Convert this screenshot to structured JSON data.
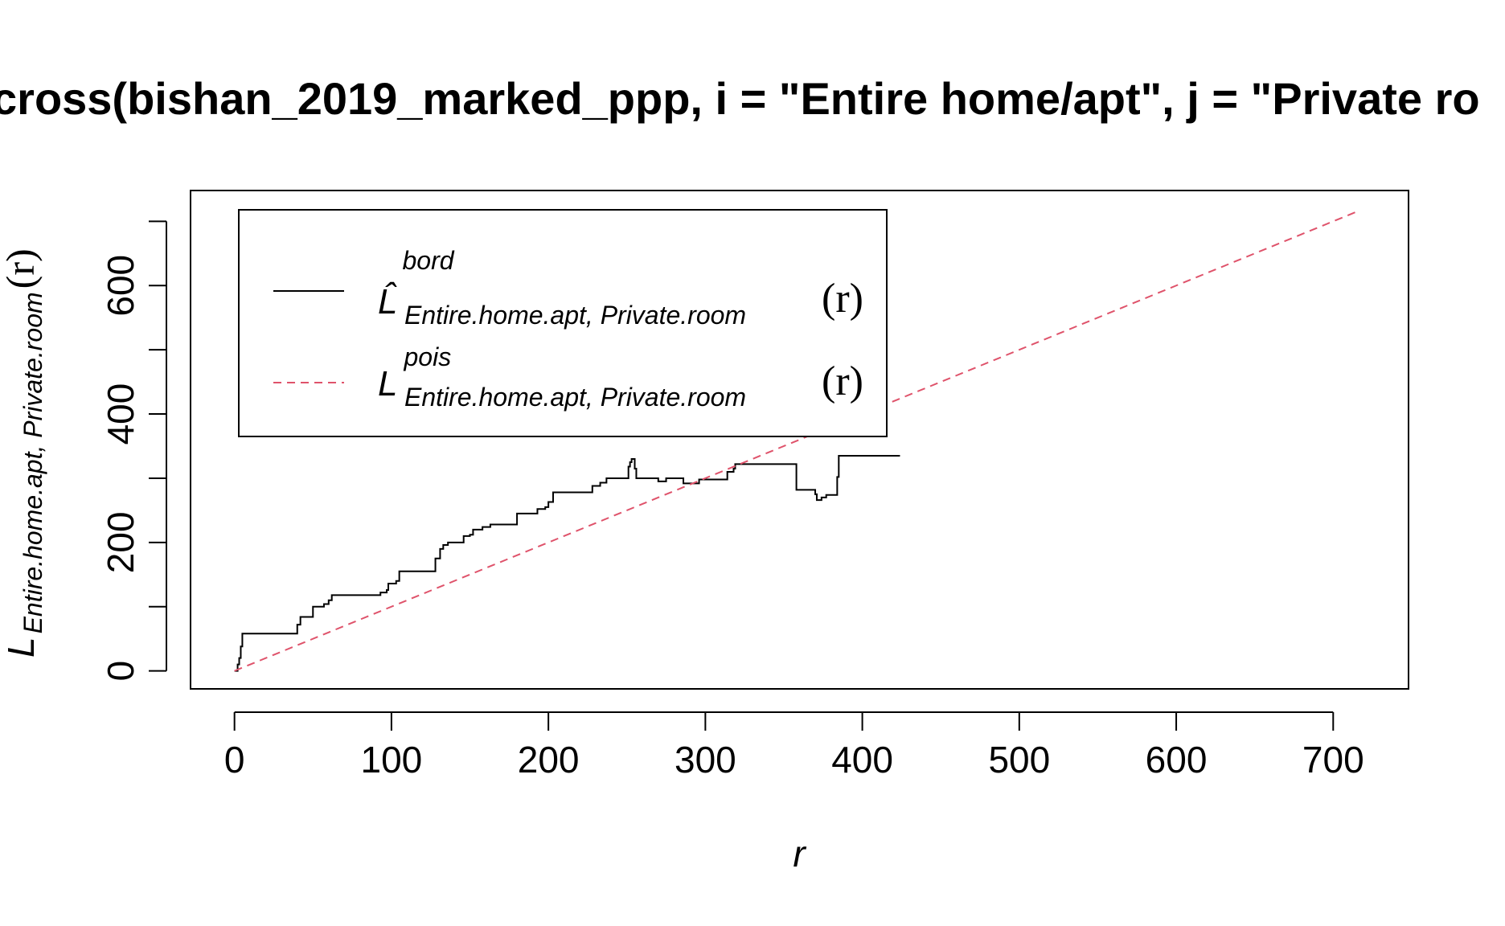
{
  "chart_data": {
    "type": "line",
    "title": "cross(bishan_2019_marked_ppp, i = \"Entire home/apt\", j = \"Private ro",
    "xlabel": "r",
    "ylabel": {
      "main": "L",
      "sub": "Entire.home.apt, Private.room",
      "arg": "(r)"
    },
    "xlim": [
      -28,
      748
    ],
    "ylim": [
      -28,
      748
    ],
    "x_ticks": [
      0,
      100,
      200,
      300,
      400,
      500,
      600,
      700
    ],
    "x_tick_labels": [
      "0",
      "100",
      "200",
      "300",
      "400",
      "500",
      "600",
      "700"
    ],
    "y_ticks": [
      0,
      100,
      200,
      300,
      400,
      500,
      600,
      700
    ],
    "y_tick_labels": [
      "0",
      "200",
      "400",
      "600"
    ],
    "y_tick_label_values": [
      0,
      200,
      400,
      600
    ],
    "legend": {
      "position": "top-left",
      "entries": [
        {
          "main": "L̂",
          "sup": "bord",
          "sub": "Entire.home.apt, Private.room",
          "arg": "(r)",
          "color": "#000000",
          "dash": "solid"
        },
        {
          "main": "L",
          "sup": "pois",
          "sub": "Entire.home.apt, Private.room",
          "arg": "(r)",
          "color": "#DF536B",
          "dash": "dashed"
        }
      ]
    },
    "series": [
      {
        "color": "#000000",
        "style": "step",
        "points": [
          [
            0,
            0
          ],
          [
            2,
            10
          ],
          [
            3,
            20
          ],
          [
            4,
            38
          ],
          [
            5,
            58
          ],
          [
            40,
            58
          ],
          [
            40,
            72
          ],
          [
            42,
            84
          ],
          [
            50,
            84
          ],
          [
            50,
            100
          ],
          [
            57,
            104
          ],
          [
            60,
            110
          ],
          [
            62,
            118
          ],
          [
            90,
            118
          ],
          [
            93,
            122
          ],
          [
            97,
            126
          ],
          [
            98,
            136
          ],
          [
            103,
            140
          ],
          [
            105,
            155
          ],
          [
            126,
            155
          ],
          [
            128,
            175
          ],
          [
            131,
            190
          ],
          [
            133,
            196
          ],
          [
            136,
            200
          ],
          [
            144,
            200
          ],
          [
            146,
            210
          ],
          [
            150,
            212
          ],
          [
            152,
            220
          ],
          [
            158,
            224
          ],
          [
            163,
            228
          ],
          [
            178,
            228
          ],
          [
            180,
            245
          ],
          [
            192,
            245
          ],
          [
            193,
            252
          ],
          [
            198,
            255
          ],
          [
            200,
            263
          ],
          [
            203,
            278
          ],
          [
            225,
            278
          ],
          [
            228,
            288
          ],
          [
            233,
            293
          ],
          [
            237,
            300
          ],
          [
            248,
            300
          ],
          [
            251,
            318
          ],
          [
            252,
            325
          ],
          [
            253,
            330
          ],
          [
            255,
            315
          ],
          [
            256,
            300
          ],
          [
            268,
            300
          ],
          [
            270,
            295
          ],
          [
            275,
            300
          ],
          [
            284,
            300
          ],
          [
            286,
            292
          ],
          [
            293,
            292
          ],
          [
            296,
            298
          ],
          [
            312,
            298
          ],
          [
            314,
            310
          ],
          [
            318,
            315
          ],
          [
            319,
            322
          ],
          [
            357,
            322
          ],
          [
            358,
            282
          ],
          [
            367,
            282
          ],
          [
            370,
            275
          ],
          [
            371,
            266
          ],
          [
            374,
            270
          ],
          [
            377,
            274
          ],
          [
            384,
            274
          ],
          [
            384,
            302
          ],
          [
            385,
            335
          ],
          [
            424,
            335
          ]
        ]
      },
      {
        "color": "#DF536B",
        "style": "dashed",
        "points": [
          [
            0,
            0
          ],
          [
            714,
            714
          ]
        ]
      }
    ]
  }
}
